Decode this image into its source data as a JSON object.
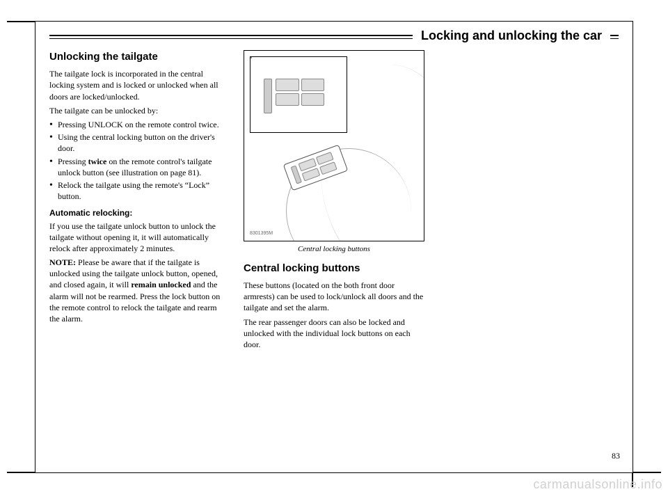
{
  "chapter_title": "Locking and unlocking the car",
  "page_number": "83",
  "watermark": "carmanualsonline.info",
  "illustration_ref": "8301395M",
  "col1": {
    "heading": "Unlocking the tailgate",
    "intro": "The tailgate lock is incorporated in the central locking system and is locked or unlocked when all doors are locked/unlocked.",
    "list_intro": "The tailgate can be unlocked by:",
    "items": [
      "Pressing UNLOCK on the remote control twice.",
      "Using the central locking button on the driver's door.",
      "Pressing twice on the remote control's tailgate unlock button (see illustration on page 81).",
      "Relock the tailgate using the remote's “Lock” button."
    ],
    "subhead": "Automatic relocking:",
    "sub_body": "If you use the tailgate unlock button to unlock the tailgate without opening it, it will automatically relock after approximately 2 minutes.",
    "note_label": "NOTE:",
    "note_body": " Please be aware that if the tailgate is unlocked using the tailgate unlock button, opened, and closed again, it will ",
    "note_bold": "remain unlocked",
    "note_body2": " and the alarm will not be rearmed. Press the lock button on the remote control to relock the tailgate and rearm the alarm."
  },
  "col2": {
    "caption": "Central locking buttons",
    "heading": "Central locking buttons",
    "body1": "These buttons (located on the both front door armrests) can be used to lock/unlock all doors and the tailgate and set the alarm.",
    "body2": "The rear passenger doors can also be locked and unlocked with the individual lock buttons on each door."
  }
}
